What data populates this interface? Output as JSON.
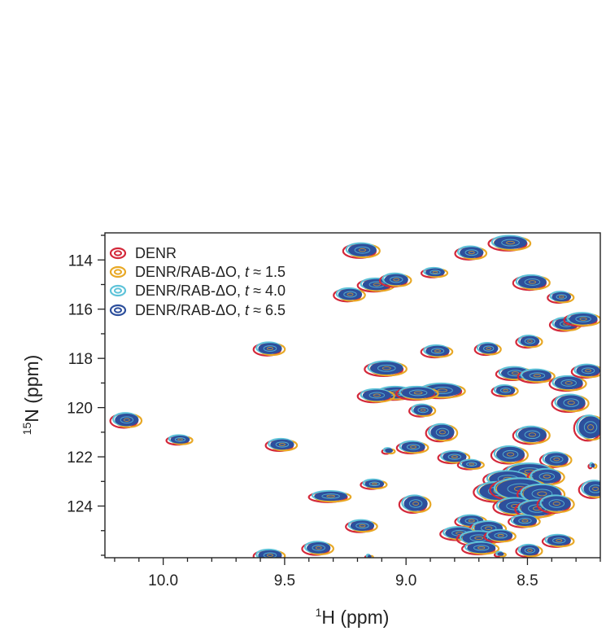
{
  "chart_data": {
    "type": "scatter",
    "x_axis": {
      "label_sup": "1",
      "label_main": "H (ppm)",
      "range": [
        10.24,
        8.2
      ],
      "reversed": true,
      "ticks": [
        10.0,
        9.5,
        9.0,
        8.5
      ],
      "tick_labels": [
        "10.0",
        "9.5",
        "9.0",
        "8.5"
      ]
    },
    "y_axis": {
      "label_sup": "15",
      "label_main": "N (ppm)",
      "range": [
        112.9,
        126.1
      ],
      "reversed": true,
      "ticks": [
        114,
        116,
        118,
        120,
        122,
        124
      ],
      "tick_labels": [
        "114",
        "116",
        "118",
        "120",
        "122",
        "124"
      ]
    },
    "grid": false,
    "legend_position": "top-left",
    "series": [
      {
        "name": "DENR",
        "name_italic": "",
        "name_suffix": "",
        "color": "#d3283a"
      },
      {
        "name": "DENR/RAB-ΔO, ",
        "name_italic": "t",
        "name_suffix": " ≈ 1.5",
        "color": "#e8a825"
      },
      {
        "name": "DENR/RAB-ΔO, ",
        "name_italic": "t",
        "name_suffix": " ≈ 4.0",
        "color": "#5ec3d9"
      },
      {
        "name": "DENR/RAB-ΔO, ",
        "name_italic": "t",
        "name_suffix": " ≈ 6.5",
        "color": "#2d4f9c"
      }
    ],
    "peaks": [
      [
        10.15,
        120.5,
        0.05,
        0.25
      ],
      [
        9.93,
        121.3,
        0.04,
        0.15
      ],
      [
        9.56,
        117.6,
        0.05,
        0.22
      ],
      [
        9.51,
        121.5,
        0.05,
        0.2
      ],
      [
        9.56,
        126.0,
        0.05,
        0.2
      ],
      [
        9.31,
        123.6,
        0.07,
        0.18
      ],
      [
        9.36,
        125.7,
        0.05,
        0.22
      ],
      [
        9.18,
        113.6,
        0.06,
        0.25
      ],
      [
        9.12,
        115.0,
        0.06,
        0.22
      ],
      [
        9.04,
        114.8,
        0.05,
        0.22
      ],
      [
        9.23,
        115.4,
        0.05,
        0.22
      ],
      [
        9.08,
        118.4,
        0.07,
        0.25
      ],
      [
        9.04,
        119.4,
        0.07,
        0.22
      ],
      [
        9.12,
        119.5,
        0.06,
        0.22
      ],
      [
        8.87,
        117.7,
        0.05,
        0.2
      ],
      [
        8.88,
        114.5,
        0.04,
        0.15
      ],
      [
        8.85,
        119.3,
        0.08,
        0.25
      ],
      [
        8.95,
        119.4,
        0.07,
        0.22
      ],
      [
        8.93,
        120.1,
        0.04,
        0.2
      ],
      [
        8.97,
        121.6,
        0.05,
        0.2
      ],
      [
        8.85,
        121.0,
        0.05,
        0.3
      ],
      [
        9.13,
        123.1,
        0.04,
        0.15
      ],
      [
        9.18,
        124.8,
        0.05,
        0.2
      ],
      [
        8.96,
        123.9,
        0.05,
        0.3
      ],
      [
        8.8,
        122.0,
        0.05,
        0.2
      ],
      [
        8.73,
        122.3,
        0.04,
        0.15
      ],
      [
        8.73,
        113.7,
        0.05,
        0.22
      ],
      [
        8.57,
        113.3,
        0.07,
        0.25
      ],
      [
        8.66,
        117.6,
        0.04,
        0.2
      ],
      [
        8.48,
        114.9,
        0.06,
        0.25
      ],
      [
        8.49,
        117.3,
        0.04,
        0.2
      ],
      [
        8.36,
        115.5,
        0.04,
        0.18
      ],
      [
        8.34,
        116.6,
        0.05,
        0.22
      ],
      [
        8.27,
        116.4,
        0.06,
        0.22
      ],
      [
        8.55,
        118.6,
        0.06,
        0.22
      ],
      [
        8.46,
        118.7,
        0.06,
        0.22
      ],
      [
        8.59,
        119.3,
        0.04,
        0.18
      ],
      [
        8.33,
        119.0,
        0.06,
        0.25
      ],
      [
        8.25,
        118.5,
        0.05,
        0.22
      ],
      [
        8.32,
        119.8,
        0.06,
        0.3
      ],
      [
        8.24,
        120.8,
        0.05,
        0.45
      ],
      [
        8.48,
        121.1,
        0.06,
        0.3
      ],
      [
        8.38,
        122.1,
        0.05,
        0.25
      ],
      [
        8.57,
        121.9,
        0.06,
        0.3
      ],
      [
        8.49,
        122.6,
        0.09,
        0.3
      ],
      [
        8.58,
        122.9,
        0.08,
        0.3
      ],
      [
        8.42,
        122.8,
        0.06,
        0.28
      ],
      [
        8.62,
        123.4,
        0.08,
        0.35
      ],
      [
        8.53,
        123.3,
        0.1,
        0.4
      ],
      [
        8.44,
        123.5,
        0.08,
        0.35
      ],
      [
        8.55,
        124.0,
        0.07,
        0.3
      ],
      [
        8.46,
        124.1,
        0.07,
        0.3
      ],
      [
        8.38,
        123.9,
        0.06,
        0.3
      ],
      [
        8.22,
        123.3,
        0.05,
        0.3
      ],
      [
        8.51,
        124.6,
        0.05,
        0.2
      ],
      [
        8.73,
        124.6,
        0.05,
        0.2
      ],
      [
        8.66,
        124.9,
        0.06,
        0.25
      ],
      [
        8.78,
        125.1,
        0.06,
        0.22
      ],
      [
        8.7,
        125.3,
        0.07,
        0.25
      ],
      [
        8.61,
        125.2,
        0.05,
        0.2
      ],
      [
        8.37,
        125.4,
        0.05,
        0.2
      ],
      [
        8.69,
        125.7,
        0.06,
        0.2
      ],
      [
        8.49,
        125.8,
        0.04,
        0.2
      ],
      [
        9.07,
        121.75,
        0.015,
        0.08
      ],
      [
        9.15,
        126.05,
        0.006,
        0.05
      ],
      [
        8.61,
        125.95,
        0.012,
        0.06
      ],
      [
        8.23,
        122.35,
        0.006,
        0.07
      ]
    ]
  }
}
